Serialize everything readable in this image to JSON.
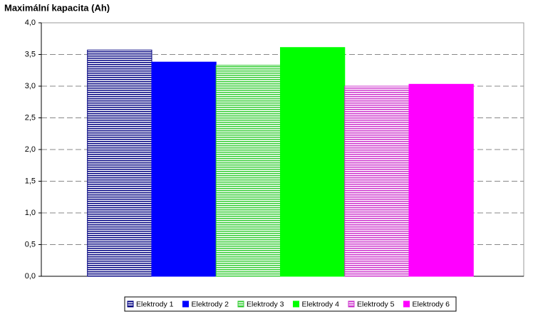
{
  "chart_data": {
    "type": "bar",
    "title": "Maximální kapacita (Ah)",
    "categories": [
      null
    ],
    "series": [
      {
        "name": "Elektrody 1",
        "color": "#000080",
        "pattern": "stripes",
        "values": [
          3.57
        ]
      },
      {
        "name": "Elektrody 2",
        "color": "#0000ff",
        "pattern": "solid",
        "values": [
          3.38
        ]
      },
      {
        "name": "Elektrody 3",
        "color": "#33cc33",
        "pattern": "stripes",
        "values": [
          3.33
        ]
      },
      {
        "name": "Elektrody 4",
        "color": "#00ff00",
        "pattern": "solid",
        "values": [
          3.61
        ]
      },
      {
        "name": "Elektrody 5",
        "color": "#cc33cc",
        "pattern": "stripes",
        "values": [
          3.0
        ]
      },
      {
        "name": "Elektrody 6",
        "color": "#ff00ff",
        "pattern": "solid",
        "values": [
          3.03
        ]
      }
    ],
    "ylim": [
      0,
      4
    ],
    "yticks": [
      {
        "value": 0,
        "label": "0,0"
      },
      {
        "value": 0.5,
        "label": "0,5"
      },
      {
        "value": 1,
        "label": "1,0"
      },
      {
        "value": 1.5,
        "label": "1,5"
      },
      {
        "value": 2,
        "label": "2,0"
      },
      {
        "value": 2.5,
        "label": "2,5"
      },
      {
        "value": 3,
        "label": "3,0"
      },
      {
        "value": 3.5,
        "label": "3,5"
      },
      {
        "value": 4,
        "label": "4,0"
      }
    ],
    "grid": true,
    "legend": "bottom"
  }
}
